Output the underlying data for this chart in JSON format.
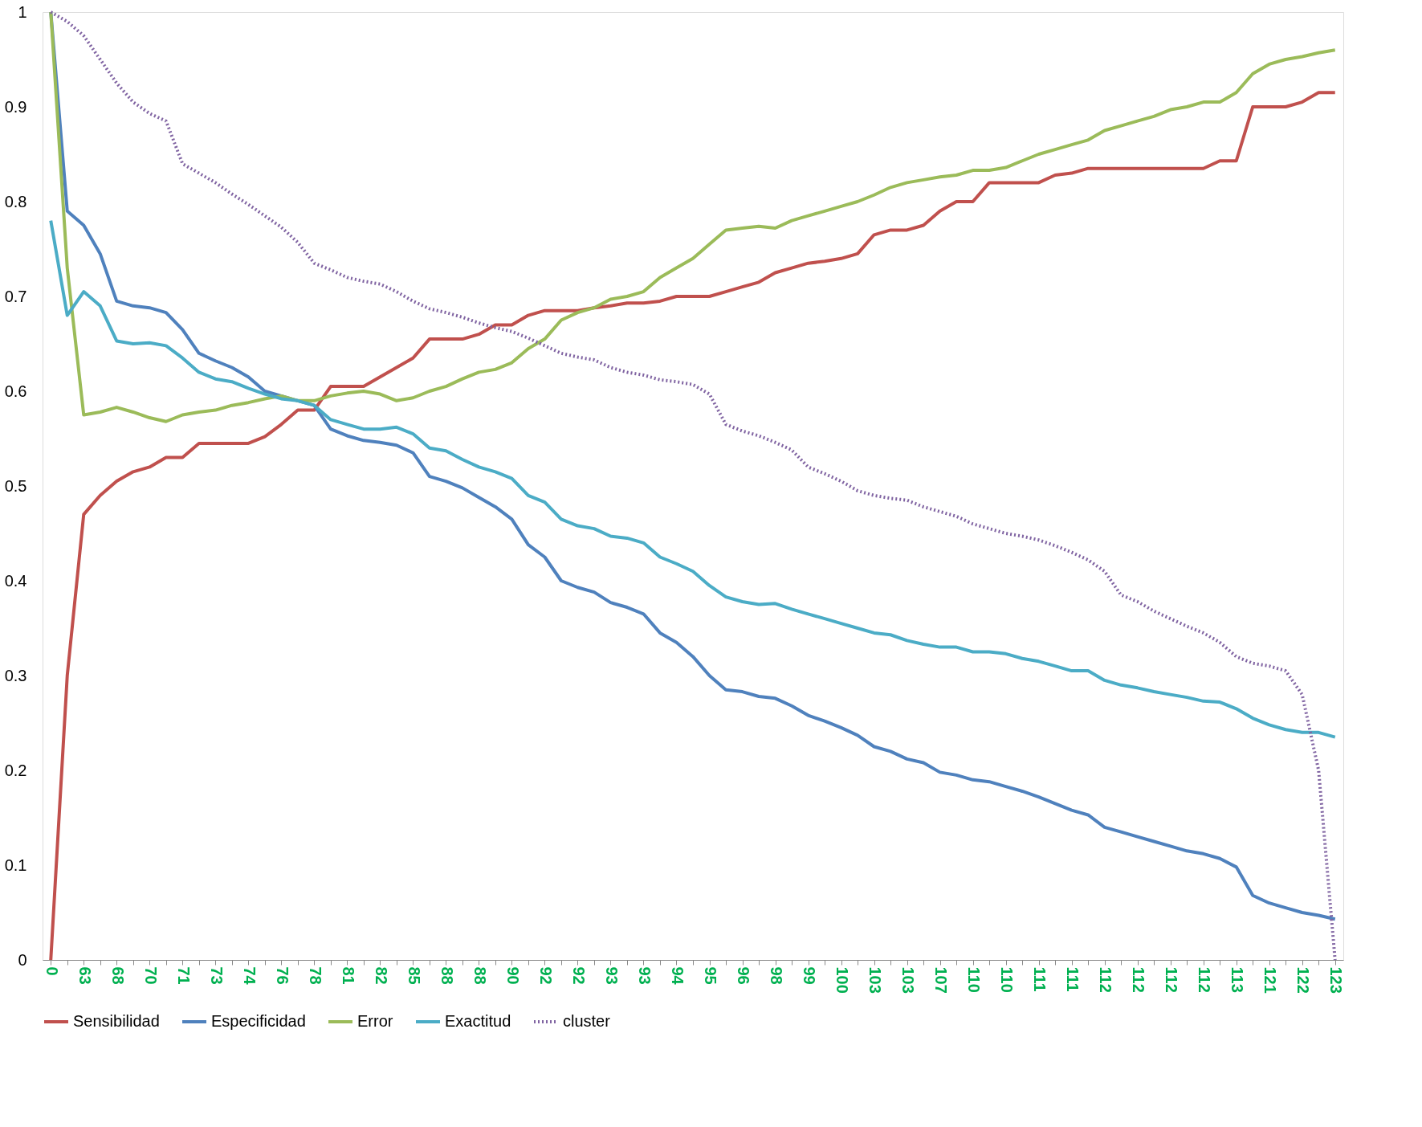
{
  "chart_data": {
    "type": "line",
    "categories": [
      "0",
      null,
      "63",
      null,
      "68",
      null,
      "70",
      null,
      "71",
      null,
      "73",
      null,
      "74",
      null,
      "76",
      null,
      "78",
      null,
      "81",
      null,
      "82",
      null,
      "85",
      null,
      "88",
      null,
      "88",
      null,
      "90",
      null,
      "92",
      null,
      "92",
      null,
      "93",
      null,
      "93",
      null,
      "94",
      null,
      "95",
      null,
      "96",
      null,
      "98",
      null,
      "99",
      null,
      "100",
      null,
      "103",
      null,
      "103",
      null,
      "107",
      null,
      "110",
      null,
      "110",
      null,
      "111",
      null,
      "111",
      null,
      "112",
      null,
      "112",
      null,
      "112",
      null,
      "112",
      null,
      "113",
      null,
      "121",
      null,
      "122",
      null,
      "123"
    ],
    "ylim": [
      0,
      1
    ],
    "yticks": [
      0,
      0.1,
      0.2,
      0.3,
      0.4,
      0.5,
      0.6,
      0.7,
      0.8,
      0.9,
      1
    ],
    "grid": false,
    "legend": "bottom",
    "marker": "none",
    "series": [
      {
        "name": "Sensibilidad",
        "color": "#c0504d",
        "line_style": "solid",
        "values": [
          0,
          0.3,
          0.47,
          0.49,
          0.505,
          0.515,
          0.52,
          0.53,
          0.53,
          0.545,
          0.545,
          0.545,
          0.545,
          0.552,
          0.565,
          0.58,
          0.58,
          0.605,
          0.605,
          0.605,
          0.615,
          0.625,
          0.635,
          0.655,
          0.655,
          0.655,
          0.66,
          0.67,
          0.67,
          0.68,
          0.685,
          0.685,
          0.685,
          0.688,
          0.69,
          0.693,
          0.693,
          0.695,
          0.7,
          0.7,
          0.7,
          0.705,
          0.71,
          0.715,
          0.725,
          0.73,
          0.735,
          0.737,
          0.74,
          0.745,
          0.765,
          0.77,
          0.77,
          0.775,
          0.79,
          0.8,
          0.8,
          0.82,
          0.82,
          0.82,
          0.82,
          0.828,
          0.83,
          0.835,
          0.835,
          0.835,
          0.835,
          0.835,
          0.835,
          0.835,
          0.835,
          0.843,
          0.843,
          0.9,
          0.9,
          0.9,
          0.905,
          0.915,
          0.915
        ]
      },
      {
        "name": "Especificidad",
        "color": "#4f81bd",
        "line_style": "solid",
        "values": [
          1,
          0.79,
          0.775,
          0.745,
          0.695,
          0.69,
          0.688,
          0.683,
          0.665,
          0.64,
          0.632,
          0.625,
          0.615,
          0.6,
          0.595,
          0.59,
          0.585,
          0.56,
          0.553,
          0.548,
          0.546,
          0.543,
          0.535,
          0.51,
          0.505,
          0.498,
          0.488,
          0.478,
          0.465,
          0.438,
          0.425,
          0.4,
          0.393,
          0.388,
          0.377,
          0.372,
          0.365,
          0.345,
          0.335,
          0.32,
          0.3,
          0.285,
          0.283,
          0.278,
          0.276,
          0.268,
          0.258,
          0.252,
          0.245,
          0.237,
          0.225,
          0.22,
          0.212,
          0.208,
          0.198,
          0.195,
          0.19,
          0.188,
          0.183,
          0.178,
          0.172,
          0.165,
          0.158,
          0.153,
          0.14,
          0.135,
          0.13,
          0.125,
          0.12,
          0.115,
          0.112,
          0.107,
          0.098,
          0.068,
          0.06,
          0.055,
          0.05,
          0.047,
          0.043
        ]
      },
      {
        "name": "Error",
        "color": "#9bbb59",
        "line_style": "solid",
        "values": [
          1,
          0.73,
          0.575,
          0.578,
          0.583,
          0.578,
          0.572,
          0.568,
          0.575,
          0.578,
          0.58,
          0.585,
          0.588,
          0.592,
          0.595,
          0.59,
          0.59,
          0.595,
          0.598,
          0.6,
          0.597,
          0.59,
          0.593,
          0.6,
          0.605,
          0.613,
          0.62,
          0.623,
          0.63,
          0.645,
          0.655,
          0.675,
          0.683,
          0.688,
          0.697,
          0.7,
          0.705,
          0.72,
          0.73,
          0.74,
          0.755,
          0.77,
          0.772,
          0.774,
          0.772,
          0.78,
          0.785,
          0.79,
          0.795,
          0.8,
          0.807,
          0.815,
          0.82,
          0.823,
          0.826,
          0.828,
          0.833,
          0.833,
          0.836,
          0.843,
          0.85,
          0.855,
          0.86,
          0.865,
          0.875,
          0.88,
          0.885,
          0.89,
          0.897,
          0.9,
          0.905,
          0.905,
          0.915,
          0.935,
          0.945,
          0.95,
          0.953,
          0.957,
          0.96
        ]
      },
      {
        "name": "Exactitud",
        "color": "#4bacc6",
        "line_style": "solid",
        "values": [
          0.78,
          0.68,
          0.705,
          0.69,
          0.653,
          0.65,
          0.651,
          0.648,
          0.635,
          0.62,
          0.613,
          0.61,
          0.603,
          0.597,
          0.592,
          0.59,
          0.585,
          0.57,
          0.565,
          0.56,
          0.56,
          0.562,
          0.555,
          0.54,
          0.537,
          0.528,
          0.52,
          0.515,
          0.508,
          0.49,
          0.483,
          0.465,
          0.458,
          0.455,
          0.447,
          0.445,
          0.44,
          0.425,
          0.418,
          0.41,
          0.395,
          0.383,
          0.378,
          0.375,
          0.376,
          0.37,
          0.365,
          0.36,
          0.355,
          0.35,
          0.345,
          0.343,
          0.337,
          0.333,
          0.33,
          0.33,
          0.325,
          0.325,
          0.323,
          0.318,
          0.315,
          0.31,
          0.305,
          0.305,
          0.295,
          0.29,
          0.287,
          0.283,
          0.28,
          0.277,
          0.273,
          0.272,
          0.265,
          0.255,
          0.248,
          0.243,
          0.24,
          0.24,
          0.235
        ]
      },
      {
        "name": "cluster",
        "color": "#8064a2",
        "line_style": "dotted",
        "values": [
          1,
          0.99,
          0.975,
          0.95,
          0.925,
          0.905,
          0.893,
          0.885,
          0.84,
          0.83,
          0.82,
          0.808,
          0.797,
          0.785,
          0.773,
          0.757,
          0.735,
          0.728,
          0.72,
          0.716,
          0.713,
          0.705,
          0.695,
          0.687,
          0.683,
          0.678,
          0.672,
          0.667,
          0.663,
          0.656,
          0.648,
          0.64,
          0.636,
          0.633,
          0.625,
          0.62,
          0.617,
          0.612,
          0.61,
          0.607,
          0.597,
          0.565,
          0.558,
          0.553,
          0.546,
          0.538,
          0.52,
          0.513,
          0.505,
          0.495,
          0.49,
          0.487,
          0.485,
          0.478,
          0.473,
          0.468,
          0.46,
          0.455,
          0.45,
          0.447,
          0.443,
          0.437,
          0.43,
          0.422,
          0.41,
          0.385,
          0.378,
          0.368,
          0.36,
          0.352,
          0.345,
          0.335,
          0.32,
          0.313,
          0.31,
          0.305,
          0.28,
          0.2,
          0
        ]
      }
    ]
  }
}
